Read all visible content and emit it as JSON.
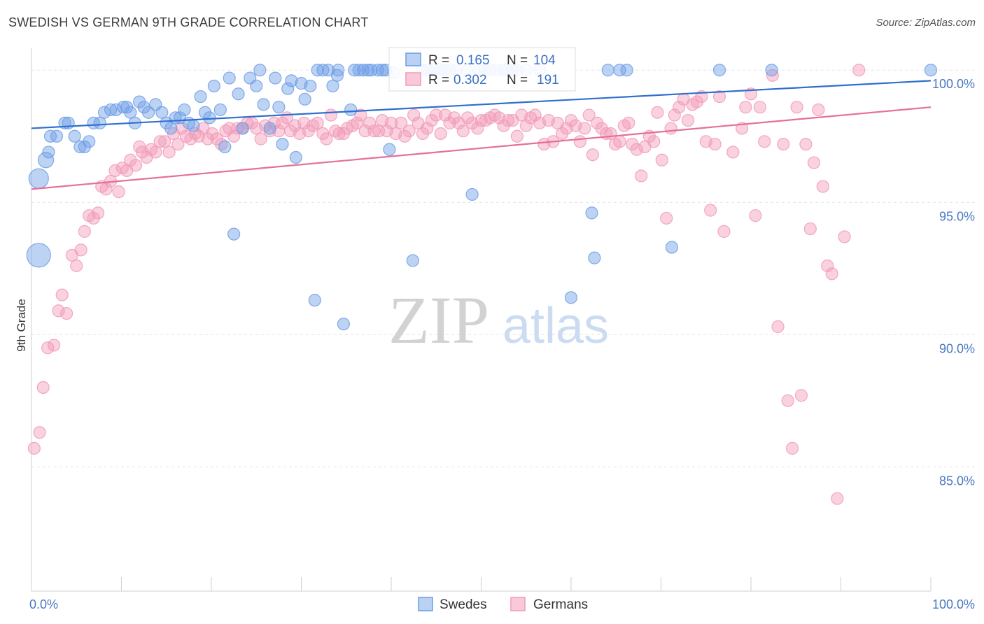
{
  "header": {
    "title": "SWEDISH VS GERMAN 9TH GRADE CORRELATION CHART",
    "source": "Source: ZipAtlas.com"
  },
  "watermark": {
    "zip": "ZIP",
    "atlas": "atlas"
  },
  "legend_top": [
    {
      "r_label": "R =",
      "r_value": "0.165",
      "n_label": "N =",
      "n_value": "104"
    },
    {
      "r_label": "R =",
      "r_value": "0.302",
      "n_label": "N =",
      "n_value": "191"
    }
  ],
  "chart_data": {
    "type": "scatter",
    "xlabel": "",
    "ylabel": "9th Grade",
    "xlim": [
      0,
      100
    ],
    "ylim": [
      80.3,
      100.8
    ],
    "x_tick_labels": [
      "0.0%",
      "100.0%"
    ],
    "y_ticks": [
      85,
      90,
      95,
      100
    ],
    "y_tick_labels": [
      "85.0%",
      "90.0%",
      "95.0%",
      "100.0%"
    ],
    "grid": true,
    "legend_position": "bottom-center",
    "colors": {
      "swedes": "#6d9ee6",
      "germans": "#f29ab8",
      "swedes_line": "#2f6fce",
      "germans_line": "#e56f98"
    },
    "series": [
      {
        "name": "Swedes",
        "r": 0.165,
        "n": 104,
        "trend": {
          "x": [
            0,
            100
          ],
          "y": [
            97.8,
            99.6
          ]
        },
        "points": [
          [
            0.8,
            93.0
          ],
          [
            0.8,
            95.9
          ],
          [
            1.6,
            96.6
          ],
          [
            1.9,
            96.9
          ],
          [
            2.1,
            97.5
          ],
          [
            2.8,
            97.5
          ],
          [
            3.7,
            98.0
          ],
          [
            4.1,
            98.0
          ],
          [
            4.8,
            97.5
          ],
          [
            5.4,
            97.1
          ],
          [
            5.9,
            97.1
          ],
          [
            6.4,
            97.3
          ],
          [
            6.9,
            98.0
          ],
          [
            7.6,
            98.0
          ],
          [
            8.1,
            98.4
          ],
          [
            8.8,
            98.5
          ],
          [
            9.4,
            98.5
          ],
          [
            10.2,
            98.6
          ],
          [
            10.6,
            98.6
          ],
          [
            11.0,
            98.4
          ],
          [
            11.5,
            98.0
          ],
          [
            12.0,
            98.8
          ],
          [
            12.5,
            98.6
          ],
          [
            13.0,
            98.4
          ],
          [
            13.8,
            98.7
          ],
          [
            14.5,
            98.4
          ],
          [
            15.0,
            98.0
          ],
          [
            15.5,
            97.8
          ],
          [
            16.0,
            98.2
          ],
          [
            16.5,
            98.2
          ],
          [
            17.0,
            98.5
          ],
          [
            17.5,
            98.0
          ],
          [
            18.0,
            97.9
          ],
          [
            18.8,
            99.0
          ],
          [
            19.3,
            98.4
          ],
          [
            19.8,
            98.2
          ],
          [
            20.3,
            99.4
          ],
          [
            21.0,
            98.5
          ],
          [
            21.5,
            97.1
          ],
          [
            22.0,
            99.7
          ],
          [
            22.5,
            93.8
          ],
          [
            23.0,
            99.1
          ],
          [
            23.5,
            97.8
          ],
          [
            24.3,
            99.7
          ],
          [
            25.0,
            99.4
          ],
          [
            25.4,
            100.0
          ],
          [
            25.8,
            98.7
          ],
          [
            26.5,
            97.8
          ],
          [
            27.1,
            99.7
          ],
          [
            27.5,
            98.6
          ],
          [
            27.9,
            97.2
          ],
          [
            28.5,
            99.3
          ],
          [
            28.9,
            99.6
          ],
          [
            29.4,
            96.7
          ],
          [
            30.0,
            99.5
          ],
          [
            30.4,
            98.9
          ],
          [
            31.0,
            99.4
          ],
          [
            31.5,
            91.3
          ],
          [
            31.8,
            100.0
          ],
          [
            32.4,
            100.0
          ],
          [
            33.0,
            100.0
          ],
          [
            33.5,
            99.4
          ],
          [
            34.0,
            99.8
          ],
          [
            34.1,
            100.0
          ],
          [
            34.7,
            90.4
          ],
          [
            35.5,
            98.5
          ],
          [
            35.9,
            100.0
          ],
          [
            36.4,
            100.0
          ],
          [
            36.9,
            100.0
          ],
          [
            37.4,
            100.0
          ],
          [
            37.8,
            100.0
          ],
          [
            38.5,
            100.0
          ],
          [
            39.0,
            100.0
          ],
          [
            39.4,
            100.0
          ],
          [
            39.8,
            97.0
          ],
          [
            40.3,
            99.9
          ],
          [
            42.4,
            92.8
          ],
          [
            43.4,
            100.0
          ],
          [
            44.0,
            100.0
          ],
          [
            44.7,
            100.0
          ],
          [
            45.4,
            100.0
          ],
          [
            45.9,
            100.0
          ],
          [
            46.5,
            100.0
          ],
          [
            47.2,
            100.0
          ],
          [
            48.4,
            100.0
          ],
          [
            49.0,
            95.3
          ],
          [
            49.8,
            100.0
          ],
          [
            50.4,
            100.0
          ],
          [
            51.0,
            100.0
          ],
          [
            51.7,
            100.0
          ],
          [
            52.5,
            100.0
          ],
          [
            53.0,
            100.0
          ],
          [
            53.5,
            100.0
          ],
          [
            54.0,
            100.0
          ],
          [
            55.0,
            100.0
          ],
          [
            56.5,
            100.0
          ],
          [
            60.0,
            91.4
          ],
          [
            62.3,
            94.6
          ],
          [
            62.6,
            92.9
          ],
          [
            64.1,
            100.0
          ],
          [
            65.4,
            100.0
          ],
          [
            66.2,
            100.0
          ],
          [
            71.2,
            93.3
          ],
          [
            76.5,
            100.0
          ],
          [
            82.3,
            100.0
          ],
          [
            100.0,
            100.0
          ]
        ]
      },
      {
        "name": "Germans",
        "r": 0.302,
        "n": 191,
        "trend": {
          "x": [
            0,
            100
          ],
          "y": [
            95.5,
            98.6
          ]
        },
        "points": [
          [
            0.3,
            85.7
          ],
          [
            0.9,
            86.3
          ],
          [
            1.3,
            88.0
          ],
          [
            1.8,
            89.5
          ],
          [
            2.5,
            89.6
          ],
          [
            3.0,
            90.9
          ],
          [
            3.4,
            91.5
          ],
          [
            3.9,
            90.8
          ],
          [
            4.5,
            93.0
          ],
          [
            5.0,
            92.6
          ],
          [
            5.5,
            93.2
          ],
          [
            5.9,
            93.9
          ],
          [
            6.4,
            94.5
          ],
          [
            6.9,
            94.4
          ],
          [
            7.4,
            94.6
          ],
          [
            7.8,
            95.6
          ],
          [
            8.3,
            95.5
          ],
          [
            8.8,
            95.8
          ],
          [
            9.3,
            96.2
          ],
          [
            9.7,
            95.4
          ],
          [
            10.1,
            96.3
          ],
          [
            10.6,
            96.2
          ],
          [
            11.0,
            96.6
          ],
          [
            11.6,
            96.4
          ],
          [
            12.0,
            97.1
          ],
          [
            12.3,
            96.9
          ],
          [
            12.8,
            96.7
          ],
          [
            13.3,
            97.0
          ],
          [
            13.8,
            96.9
          ],
          [
            14.3,
            97.3
          ],
          [
            14.8,
            97.3
          ],
          [
            15.3,
            96.9
          ],
          [
            15.8,
            97.6
          ],
          [
            16.3,
            97.2
          ],
          [
            16.7,
            97.8
          ],
          [
            17.2,
            97.5
          ],
          [
            17.7,
            97.4
          ],
          [
            18.2,
            97.6
          ],
          [
            18.6,
            97.5
          ],
          [
            19.1,
            97.8
          ],
          [
            19.6,
            97.4
          ],
          [
            20.1,
            97.6
          ],
          [
            20.6,
            97.4
          ],
          [
            21.1,
            97.2
          ],
          [
            21.6,
            97.7
          ],
          [
            22.0,
            97.8
          ],
          [
            22.5,
            97.5
          ],
          [
            22.9,
            97.8
          ],
          [
            23.4,
            97.8
          ],
          [
            24.0,
            98.0
          ],
          [
            24.5,
            98.0
          ],
          [
            25.0,
            97.8
          ],
          [
            25.5,
            97.4
          ],
          [
            26.0,
            97.9
          ],
          [
            26.5,
            97.7
          ],
          [
            27.0,
            98.0
          ],
          [
            27.5,
            97.7
          ],
          [
            27.9,
            98.0
          ],
          [
            28.4,
            98.2
          ],
          [
            28.8,
            97.7
          ],
          [
            29.3,
            97.9
          ],
          [
            29.8,
            97.6
          ],
          [
            30.3,
            98.0
          ],
          [
            30.8,
            97.7
          ],
          [
            31.3,
            97.9
          ],
          [
            31.8,
            98.0
          ],
          [
            32.4,
            97.6
          ],
          [
            32.8,
            97.4
          ],
          [
            33.3,
            98.3
          ],
          [
            33.8,
            97.7
          ],
          [
            34.2,
            97.6
          ],
          [
            34.7,
            97.6
          ],
          [
            35.1,
            97.8
          ],
          [
            35.7,
            97.9
          ],
          [
            36.2,
            98.0
          ],
          [
            36.6,
            98.3
          ],
          [
            37.1,
            97.7
          ],
          [
            37.6,
            98.0
          ],
          [
            38.1,
            97.7
          ],
          [
            38.6,
            97.7
          ],
          [
            39.0,
            98.1
          ],
          [
            39.5,
            97.7
          ],
          [
            40.0,
            98.0
          ],
          [
            40.5,
            97.6
          ],
          [
            41.1,
            98.0
          ],
          [
            41.5,
            97.5
          ],
          [
            42.0,
            97.7
          ],
          [
            42.5,
            98.3
          ],
          [
            43.0,
            98.0
          ],
          [
            43.5,
            97.6
          ],
          [
            44.0,
            97.8
          ],
          [
            44.5,
            98.1
          ],
          [
            45.0,
            98.3
          ],
          [
            45.5,
            97.6
          ],
          [
            46.0,
            98.3
          ],
          [
            46.5,
            98.0
          ],
          [
            47.0,
            98.2
          ],
          [
            47.5,
            98.0
          ],
          [
            48.0,
            97.7
          ],
          [
            48.5,
            98.2
          ],
          [
            49.0,
            98.0
          ],
          [
            49.6,
            97.8
          ],
          [
            50.0,
            98.1
          ],
          [
            50.5,
            98.1
          ],
          [
            51.0,
            98.2
          ],
          [
            51.5,
            98.3
          ],
          [
            52.0,
            98.2
          ],
          [
            52.5,
            97.9
          ],
          [
            53.0,
            98.1
          ],
          [
            53.5,
            98.1
          ],
          [
            54.0,
            97.5
          ],
          [
            54.5,
            98.3
          ],
          [
            55.0,
            97.9
          ],
          [
            55.5,
            98.2
          ],
          [
            56.0,
            98.3
          ],
          [
            56.5,
            98.0
          ],
          [
            57.0,
            97.2
          ],
          [
            57.5,
            98.1
          ],
          [
            58.0,
            97.3
          ],
          [
            58.5,
            98.0
          ],
          [
            59.0,
            97.6
          ],
          [
            59.5,
            97.8
          ],
          [
            60.0,
            98.1
          ],
          [
            60.5,
            97.9
          ],
          [
            61.0,
            97.3
          ],
          [
            61.5,
            97.8
          ],
          [
            62.0,
            98.3
          ],
          [
            62.4,
            96.8
          ],
          [
            62.9,
            98.0
          ],
          [
            63.4,
            97.8
          ],
          [
            63.9,
            97.6
          ],
          [
            64.4,
            97.6
          ],
          [
            64.9,
            97.2
          ],
          [
            65.4,
            97.3
          ],
          [
            65.9,
            97.9
          ],
          [
            66.4,
            98.0
          ],
          [
            66.8,
            97.2
          ],
          [
            67.3,
            97.0
          ],
          [
            67.8,
            96.0
          ],
          [
            68.2,
            97.1
          ],
          [
            68.7,
            97.5
          ],
          [
            69.2,
            97.3
          ],
          [
            69.6,
            98.4
          ],
          [
            70.1,
            96.6
          ],
          [
            70.6,
            94.4
          ],
          [
            71.1,
            97.8
          ],
          [
            71.5,
            98.3
          ],
          [
            72.0,
            98.6
          ],
          [
            72.5,
            98.9
          ],
          [
            73.0,
            98.1
          ],
          [
            73.5,
            98.7
          ],
          [
            74.0,
            98.8
          ],
          [
            74.5,
            99.0
          ],
          [
            75.0,
            97.3
          ],
          [
            75.5,
            94.7
          ],
          [
            76.0,
            97.2
          ],
          [
            76.5,
            99.0
          ],
          [
            77.0,
            93.9
          ],
          [
            78.0,
            96.9
          ],
          [
            79.0,
            97.8
          ],
          [
            79.4,
            98.6
          ],
          [
            80.0,
            99.1
          ],
          [
            80.5,
            94.5
          ],
          [
            81.0,
            98.6
          ],
          [
            81.5,
            97.3
          ],
          [
            82.4,
            99.8
          ],
          [
            83.0,
            90.3
          ],
          [
            83.6,
            97.2
          ],
          [
            84.1,
            87.5
          ],
          [
            84.6,
            85.7
          ],
          [
            85.1,
            98.6
          ],
          [
            85.6,
            87.7
          ],
          [
            86.1,
            97.2
          ],
          [
            86.6,
            94.0
          ],
          [
            87.0,
            96.5
          ],
          [
            87.5,
            98.5
          ],
          [
            88.0,
            95.6
          ],
          [
            88.5,
            92.6
          ],
          [
            89.0,
            92.3
          ],
          [
            89.6,
            83.8
          ],
          [
            90.4,
            93.7
          ],
          [
            92.0,
            100.0
          ]
        ]
      }
    ]
  },
  "bottom_legend": [
    "Swedes",
    "Germans"
  ]
}
